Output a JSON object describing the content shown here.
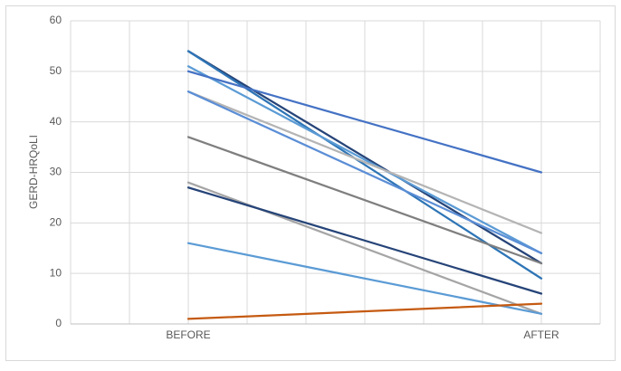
{
  "chart_data": {
    "type": "line",
    "y_label": "GERD-HRQoLI",
    "categories": [
      "BEFORE",
      "AFTER"
    ],
    "series": [
      {
        "color": "#264478",
        "values": [
          54,
          12
        ]
      },
      {
        "color": "#2e75b6",
        "values": [
          54,
          9
        ]
      },
      {
        "color": "#5b9bd5",
        "values": [
          51,
          14
        ]
      },
      {
        "color": "#4472c4",
        "values": [
          50,
          30
        ]
      },
      {
        "color": "#b4b4b4",
        "values": [
          46,
          18
        ]
      },
      {
        "color": "#5b8ed6",
        "values": [
          46,
          14
        ]
      },
      {
        "color": "#7f7f7f",
        "values": [
          37,
          12
        ]
      },
      {
        "color": "#a5a5a5",
        "values": [
          28,
          2
        ]
      },
      {
        "color": "#264478",
        "values": [
          27,
          6
        ]
      },
      {
        "color": "#5b9bd5",
        "values": [
          16,
          2
        ]
      },
      {
        "color": "#c55a11",
        "values": [
          1,
          4
        ]
      }
    ],
    "ylim": [
      0,
      60
    ],
    "yticks": [
      0,
      10,
      20,
      30,
      40,
      50,
      60
    ],
    "grid": true
  }
}
